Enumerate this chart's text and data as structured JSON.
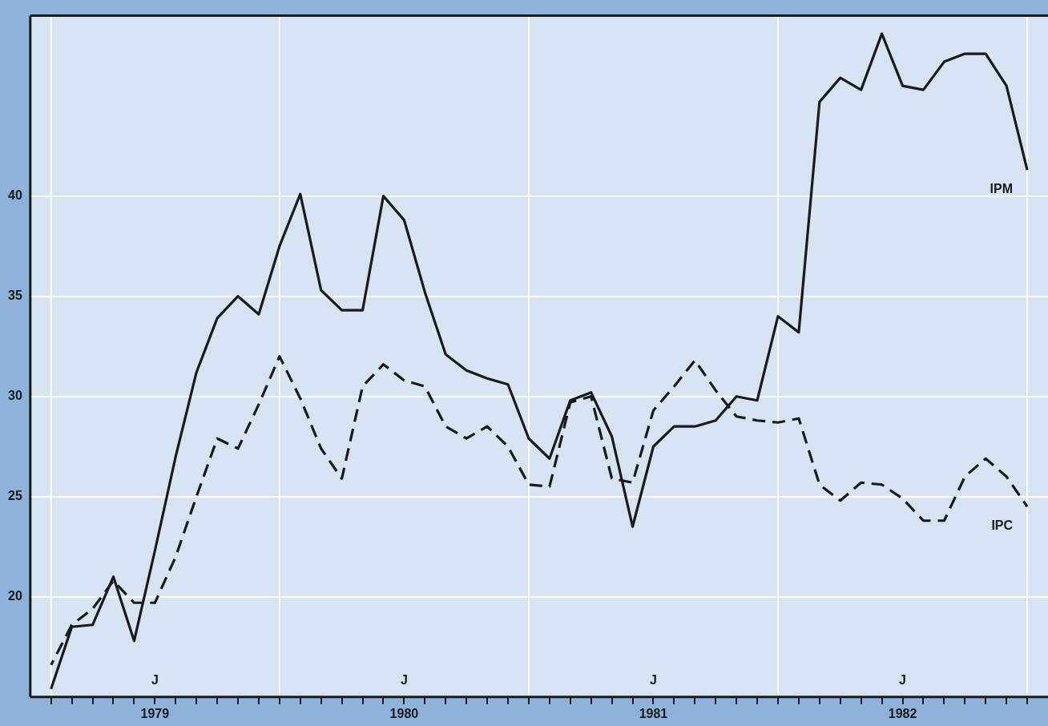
{
  "chart_data": {
    "type": "line",
    "x": [
      "1979-02",
      "1979-03",
      "1979-04",
      "1979-05",
      "1979-06",
      "1979-07",
      "1979-08",
      "1979-09",
      "1979-10",
      "1979-11",
      "1979-12",
      "1980-01",
      "1980-02",
      "1980-03",
      "1980-04",
      "1980-05",
      "1980-06",
      "1980-07",
      "1980-08",
      "1980-09",
      "1980-10",
      "1980-11",
      "1980-12",
      "1981-01",
      "1981-02",
      "1981-03",
      "1981-04",
      "1981-05",
      "1981-06",
      "1981-07",
      "1981-08",
      "1981-09",
      "1981-10",
      "1981-11",
      "1981-12",
      "1982-01",
      "1982-02",
      "1982-03",
      "1982-04",
      "1982-05",
      "1982-06",
      "1982-07",
      "1982-08",
      "1982-09",
      "1982-10",
      "1982-11",
      "1982-12",
      "1983-01"
    ],
    "series": [
      {
        "name": "IPM",
        "color": "#1a1a1a",
        "line_style": "solid",
        "values": [
          15.4,
          18.5,
          18.6,
          21.0,
          17.8,
          22.3,
          27.0,
          31.2,
          33.9,
          35.0,
          34.1,
          37.5,
          40.1,
          35.3,
          34.3,
          34.3,
          40.0,
          38.8,
          35.2,
          32.1,
          31.3,
          30.9,
          30.6,
          27.9,
          26.9,
          29.8,
          30.2,
          28.0,
          23.5,
          27.5,
          28.5,
          28.5,
          28.8,
          30.0,
          29.8,
          34.0,
          33.2,
          44.7,
          45.9,
          45.3,
          48.1,
          45.5,
          45.3,
          46.7,
          47.1,
          47.1,
          45.5,
          41.3
        ]
      },
      {
        "name": "IPC",
        "color": "#1a1a1a",
        "line_style": "dashed",
        "values": [
          16.6,
          18.6,
          19.4,
          20.8,
          19.7,
          19.7,
          22.0,
          25.0,
          27.9,
          27.4,
          29.6,
          32.0,
          29.9,
          27.4,
          25.9,
          30.5,
          31.6,
          30.8,
          30.5,
          28.5,
          27.9,
          28.5,
          27.5,
          25.6,
          25.5,
          29.7,
          30.0,
          25.9,
          25.7,
          29.3,
          30.5,
          31.8,
          30.3,
          29.0,
          28.8,
          28.7,
          28.9,
          25.6,
          24.8,
          25.7,
          25.6,
          24.9,
          23.8,
          23.8,
          26.0,
          26.9,
          26.0,
          24.5
        ]
      }
    ],
    "xlim": [
      "1979-01",
      "1983-02"
    ],
    "xticks": [
      {
        "value": "1979-02",
        "label": null
      },
      {
        "value": "1979-03",
        "label": null
      },
      {
        "value": "1979-04",
        "label": null
      },
      {
        "value": "1979-05",
        "label": null
      },
      {
        "value": "1979-06",
        "label": null
      },
      {
        "value": "1979-07",
        "label": "1979"
      },
      {
        "value": "1979-08",
        "label": null
      },
      {
        "value": "1979-09",
        "label": null
      },
      {
        "value": "1979-10",
        "label": null
      },
      {
        "value": "1979-11",
        "label": null
      },
      {
        "value": "1979-12",
        "label": null
      },
      {
        "value": "1980-01",
        "label": null
      },
      {
        "value": "1980-02",
        "label": null
      },
      {
        "value": "1980-03",
        "label": null
      },
      {
        "value": "1980-04",
        "label": null
      },
      {
        "value": "1980-05",
        "label": null
      },
      {
        "value": "1980-06",
        "label": null
      },
      {
        "value": "1980-07",
        "label": "1980"
      },
      {
        "value": "1980-08",
        "label": null
      },
      {
        "value": "1980-09",
        "label": null
      },
      {
        "value": "1980-10",
        "label": null
      },
      {
        "value": "1980-11",
        "label": null
      },
      {
        "value": "1980-12",
        "label": null
      },
      {
        "value": "1981-01",
        "label": null
      },
      {
        "value": "1981-02",
        "label": null
      },
      {
        "value": "1981-03",
        "label": null
      },
      {
        "value": "1981-04",
        "label": null
      },
      {
        "value": "1981-05",
        "label": null
      },
      {
        "value": "1981-06",
        "label": null
      },
      {
        "value": "1981-07",
        "label": "1981"
      },
      {
        "value": "1981-08",
        "label": null
      },
      {
        "value": "1981-09",
        "label": null
      },
      {
        "value": "1981-10",
        "label": null
      },
      {
        "value": "1981-11",
        "label": null
      },
      {
        "value": "1981-12",
        "label": null
      },
      {
        "value": "1982-01",
        "label": null
      },
      {
        "value": "1982-02",
        "label": null
      },
      {
        "value": "1982-03",
        "label": null
      },
      {
        "value": "1982-04",
        "label": null
      },
      {
        "value": "1982-05",
        "label": null
      },
      {
        "value": "1982-06",
        "label": null
      },
      {
        "value": "1982-07",
        "label": "1982"
      },
      {
        "value": "1982-08",
        "label": null
      },
      {
        "value": "1982-09",
        "label": null
      },
      {
        "value": "1982-10",
        "label": null
      },
      {
        "value": "1982-11",
        "label": null
      },
      {
        "value": "1982-12",
        "label": null
      },
      {
        "value": "1983-01",
        "label": null
      }
    ],
    "ylim": [
      15,
      49
    ],
    "yticks": [
      20,
      25,
      30,
      35,
      40
    ],
    "grid": "y",
    "legend": false,
    "marker": "none",
    "ref_lines": [
      {
        "axis": "x",
        "value": "1979-02",
        "color": "#ffffff"
      },
      {
        "axis": "x",
        "value": "1980-01",
        "color": "#ffffff"
      },
      {
        "axis": "x",
        "value": "1981-01",
        "color": "#ffffff"
      },
      {
        "axis": "x",
        "value": "1982-01",
        "color": "#ffffff"
      },
      {
        "axis": "x",
        "value": "1983-01",
        "color": "#ffffff"
      }
    ],
    "annotations": [
      "J",
      "J",
      "J",
      "J"
    ]
  }
}
